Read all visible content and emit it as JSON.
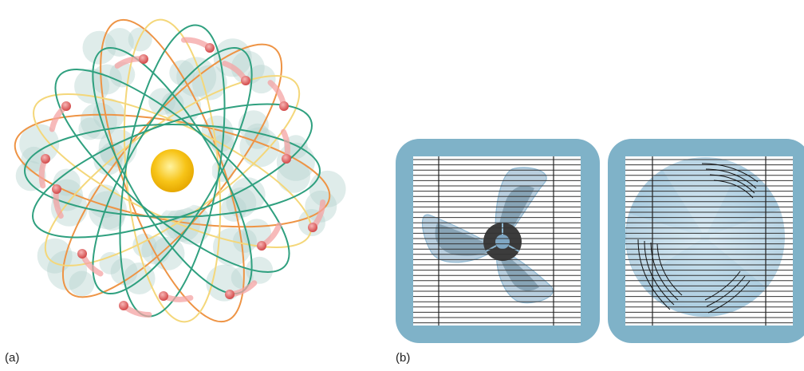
{
  "figure": {
    "panel_a": {
      "label": "(a)",
      "colors": {
        "nucleus": "#f7c418",
        "nucleus_glow": "#fff6c8",
        "electron": "#e35d5d",
        "electron_trail": "#f4a3a3",
        "cloud": "#b9d5d1",
        "orbit_orange": "#ee9445",
        "orbit_green": "#2fa07f",
        "orbit_yellow": "#f4d77a"
      },
      "icons": [
        "nucleus-icon",
        "electron-icon",
        "orbit-icon",
        "electron-cloud-icon"
      ]
    },
    "panel_b": {
      "label": "(b)",
      "colors": {
        "frame": "#7fb2c8",
        "grille": "#333333",
        "blade_still": "#7fa7c4",
        "hub": "#3c3c3c",
        "blade_blur": "#a9cde3"
      },
      "states": [
        "stationary-fan",
        "spinning-fan"
      ]
    }
  }
}
